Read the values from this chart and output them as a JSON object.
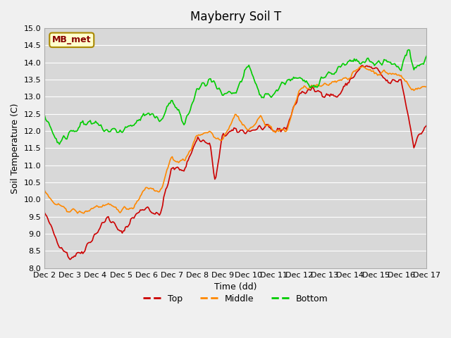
{
  "title": "Mayberry Soil T",
  "xlabel": "Time (dd)",
  "ylabel": "Soil Temperature (C)",
  "ylim": [
    8.0,
    15.0
  ],
  "yticks": [
    8.0,
    8.5,
    9.0,
    9.5,
    10.0,
    10.5,
    11.0,
    11.5,
    12.0,
    12.5,
    13.0,
    13.5,
    14.0,
    14.5,
    15.0
  ],
  "xtick_labels": [
    "Dec 2",
    "Dec 3",
    "Dec 4",
    "Dec 5",
    "Dec 6",
    "Dec 7",
    "Dec 8",
    "Dec 9",
    "Dec 10",
    "Dec 11",
    "Dec 12",
    "Dec 13",
    "Dec 14",
    "Dec 15",
    "Dec 16",
    "Dec 17"
  ],
  "line_colors": {
    "Top": "#cc0000",
    "Middle": "#ff8800",
    "Bottom": "#00cc00"
  },
  "line_width": 1.2,
  "bg_color": "#e8e8e8",
  "plot_bg_color": "#d8d8d8",
  "legend_label": "MB_met",
  "legend_box_color": "#ffffcc",
  "legend_box_edge": "#aa8800"
}
